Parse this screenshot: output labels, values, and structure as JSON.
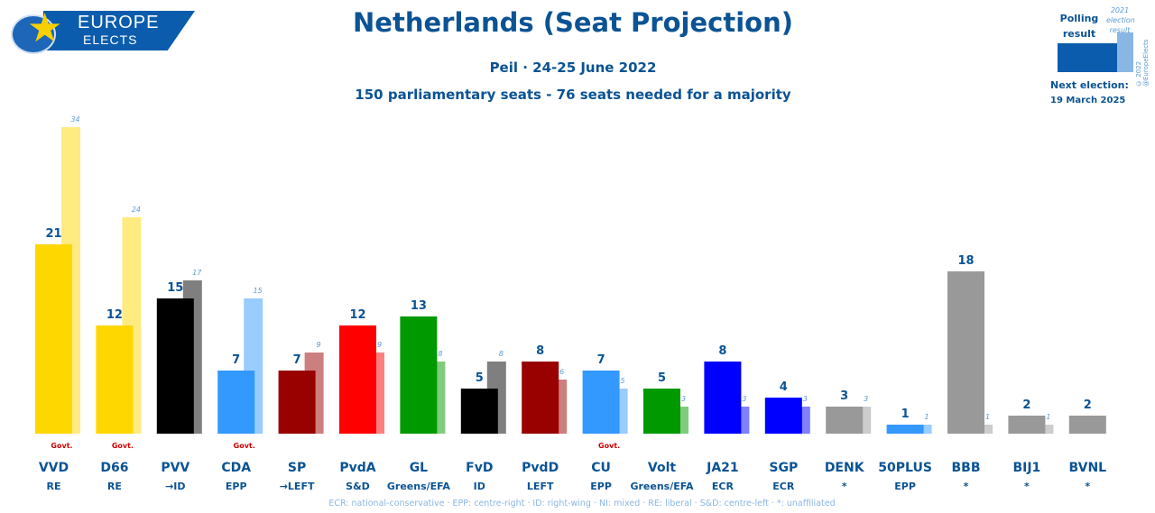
{
  "logo": {
    "line1": "EUROPE",
    "line2": "ELECTS"
  },
  "legend": {
    "polling_label": "Polling result",
    "election_label": "2021 election result",
    "next_election_label": "Next election:",
    "next_election_date": "19 March 2025",
    "copyright": "© 2022 @EuropeElects"
  },
  "footer": "ECR: national-conservative · EPP: centre-right · ID: right-wing · NI: mixed · RE: liberal · S&D: centre-left · *: unaffiliated",
  "chart_data": {
    "type": "bar",
    "title": "Netherlands (Seat Projection)",
    "subtitle": "Peil · 24-25 June 2022",
    "subtitle2": "150 parliamentary seats - 76 seats needed for a majority",
    "categories": [
      "VVD",
      "D66",
      "PVV",
      "CDA",
      "SP",
      "PvdA",
      "GL",
      "FvD",
      "PvdD",
      "CU",
      "Volt",
      "JA21",
      "SGP",
      "DENK",
      "50PLUS",
      "BBB",
      "BIJ1",
      "BVNL"
    ],
    "groups": [
      "RE",
      "RE",
      "→ID",
      "EPP",
      "→LEFT",
      "S&D",
      "Greens/EFA",
      "ID",
      "LEFT",
      "EPP",
      "Greens/EFA",
      "ECR",
      "ECR",
      "*",
      "EPP",
      "*",
      "*",
      "*"
    ],
    "govt": [
      true,
      true,
      false,
      true,
      false,
      false,
      false,
      false,
      false,
      true,
      false,
      false,
      false,
      false,
      false,
      false,
      false,
      false
    ],
    "govt_label": "Govt.",
    "series": [
      {
        "name": "Polling result",
        "values": [
          21,
          12,
          15,
          7,
          7,
          12,
          13,
          5,
          8,
          7,
          5,
          8,
          4,
          3,
          1,
          18,
          2,
          2
        ]
      },
      {
        "name": "2021 election result",
        "values": [
          34,
          24,
          17,
          15,
          9,
          9,
          8,
          8,
          6,
          5,
          3,
          3,
          3,
          3,
          1,
          1,
          1,
          null
        ]
      }
    ],
    "colors": [
      "#ffd700",
      "#ffd700",
      "#000000",
      "#3399ff",
      "#990000",
      "#ff0000",
      "#009900",
      "#000000",
      "#990000",
      "#3399ff",
      "#009900",
      "#0000ff",
      "#0000ff",
      "#999999",
      "#3399ff",
      "#999999",
      "#999999",
      "#999999"
    ],
    "election_colors": [
      "#ffeb80",
      "#ffeb80",
      "#7f7f7f",
      "#99ccff",
      "#cc7f7f",
      "#ff7f7f",
      "#7fcc7f",
      "#7f7f7f",
      "#cc7f7f",
      "#99ccff",
      "#7fcc7f",
      "#7f7fff",
      "#7f7fff",
      "#cccccc",
      "#99ccff",
      "#cccccc",
      "#cccccc",
      null
    ],
    "ylim": [
      0,
      36
    ],
    "grid": false
  }
}
